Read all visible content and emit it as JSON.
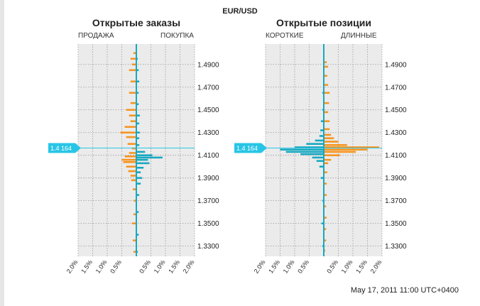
{
  "header": {
    "pair": "EUR/USD",
    "timestamp": "May 17, 2011 11:00 UTC+0400"
  },
  "colors": {
    "sell": "#f7941d",
    "buy": "#16a8c0",
    "price_marker": "#29c5e6",
    "plot_bg": "#ebebeb",
    "grid": "#9a9a9a"
  },
  "current_price": "1.4164",
  "chart_data": [
    {
      "type": "bar",
      "title": "Открытые заказы",
      "left_label": "ПРОДАЖА",
      "right_label": "ПОКУПКА",
      "orientation": "horizontal-mirrored",
      "price_range": [
        1.321,
        1.508
      ],
      "price_ticks": [
        "1.3300",
        "1.3500",
        "1.3700",
        "1.3900",
        "1.4100",
        "1.4300",
        "1.4500",
        "1.4700",
        "1.4900"
      ],
      "percent_range": [
        -2.0,
        2.0
      ],
      "percent_ticks": [
        "2.0%",
        "1.5%",
        "1.0%",
        "0.5%",
        "0.5%",
        "1.0%",
        "1.5%",
        "2.0%"
      ],
      "grid": true,
      "current_price": 1.4164,
      "bucket_size": 0.001,
      "series": [
        {
          "name": "ПРОДАЖА",
          "points": [
            [
              1.325,
              0.1
            ],
            [
              1.335,
              0.12
            ],
            [
              1.35,
              0.15
            ],
            [
              1.358,
              0.1
            ],
            [
              1.37,
              0.08
            ],
            [
              1.38,
              0.12
            ],
            [
              1.388,
              0.18
            ],
            [
              1.392,
              0.2
            ],
            [
              1.396,
              0.28
            ],
            [
              1.4,
              0.35
            ],
            [
              1.404,
              0.45
            ],
            [
              1.406,
              0.5
            ],
            [
              1.409,
              0.4
            ],
            [
              1.412,
              0.25
            ],
            [
              1.416,
              0.15
            ],
            [
              1.42,
              0.3
            ],
            [
              1.426,
              0.35
            ],
            [
              1.43,
              0.55
            ],
            [
              1.435,
              0.4
            ],
            [
              1.44,
              0.2
            ],
            [
              1.445,
              0.25
            ],
            [
              1.45,
              0.35
            ],
            [
              1.456,
              0.2
            ],
            [
              1.465,
              0.25
            ],
            [
              1.475,
              0.2
            ],
            [
              1.485,
              0.25
            ],
            [
              1.49,
              0.15
            ],
            [
              1.495,
              0.2
            ],
            [
              1.5,
              0.1
            ]
          ]
        },
        {
          "name": "ПОКУПКА",
          "points": [
            [
              1.325,
              0.05
            ],
            [
              1.34,
              0.08
            ],
            [
              1.36,
              0.08
            ],
            [
              1.375,
              0.1
            ],
            [
              1.385,
              0.15
            ],
            [
              1.39,
              0.2
            ],
            [
              1.395,
              0.15
            ],
            [
              1.399,
              0.25
            ],
            [
              1.403,
              0.45
            ],
            [
              1.406,
              0.4
            ],
            [
              1.408,
              0.9
            ],
            [
              1.41,
              0.55
            ],
            [
              1.413,
              0.3
            ],
            [
              1.419,
              0.1
            ],
            [
              1.425,
              0.1
            ],
            [
              1.43,
              0.12
            ],
            [
              1.438,
              0.1
            ],
            [
              1.445,
              0.12
            ],
            [
              1.455,
              0.08
            ],
            [
              1.465,
              0.08
            ],
            [
              1.475,
              0.1
            ],
            [
              1.485,
              0.08
            ],
            [
              1.495,
              0.05
            ]
          ]
        }
      ]
    },
    {
      "type": "bar",
      "title": "Открытые позиции",
      "left_label": "КОРОТКИЕ",
      "right_label": "ДЛИННЫЕ",
      "orientation": "horizontal-mirrored",
      "price_range": [
        1.321,
        1.508
      ],
      "price_ticks": [
        "1.3300",
        "1.3500",
        "1.3700",
        "1.3900",
        "1.4100",
        "1.4300",
        "1.4500",
        "1.4700",
        "1.4900"
      ],
      "percent_range": [
        -2.0,
        2.0
      ],
      "percent_ticks": [
        "2.0%",
        "1.5%",
        "1.0%",
        "0.5%",
        "0.5%",
        "1.0%",
        "1.5%",
        "2.0%"
      ],
      "grid": true,
      "current_price": 1.4164,
      "bucket_size": 0.001,
      "series": [
        {
          "name": "КОРОТКИЕ",
          "points": [
            [
              1.33,
              0.05
            ],
            [
              1.35,
              0.08
            ],
            [
              1.37,
              0.05
            ],
            [
              1.39,
              0.1
            ],
            [
              1.4,
              0.15
            ],
            [
              1.405,
              0.25
            ],
            [
              1.408,
              0.4
            ],
            [
              1.411,
              0.8
            ],
            [
              1.413,
              1.3
            ],
            [
              1.415,
              1.5
            ],
            [
              1.417,
              1.0
            ],
            [
              1.42,
              0.6
            ],
            [
              1.423,
              0.3
            ],
            [
              1.427,
              0.15
            ],
            [
              1.432,
              0.12
            ],
            [
              1.44,
              0.1
            ],
            [
              1.45,
              0.05
            ],
            [
              1.465,
              0.05
            ]
          ]
        },
        {
          "name": "ДЛИННЫЕ",
          "points": [
            [
              1.326,
              0.05
            ],
            [
              1.335,
              0.08
            ],
            [
              1.345,
              0.08
            ],
            [
              1.355,
              0.1
            ],
            [
              1.365,
              0.08
            ],
            [
              1.375,
              0.1
            ],
            [
              1.385,
              0.1
            ],
            [
              1.395,
              0.12
            ],
            [
              1.403,
              0.15
            ],
            [
              1.406,
              0.25
            ],
            [
              1.41,
              0.55
            ],
            [
              1.413,
              1.1
            ],
            [
              1.415,
              1.5
            ],
            [
              1.417,
              1.9
            ],
            [
              1.419,
              0.8
            ],
            [
              1.422,
              0.5
            ],
            [
              1.425,
              0.35
            ],
            [
              1.428,
              0.25
            ],
            [
              1.433,
              0.2
            ],
            [
              1.44,
              0.2
            ],
            [
              1.448,
              0.15
            ],
            [
              1.456,
              0.18
            ],
            [
              1.465,
              0.2
            ],
            [
              1.472,
              0.15
            ],
            [
              1.48,
              0.12
            ],
            [
              1.488,
              0.15
            ],
            [
              1.492,
              0.1
            ]
          ]
        }
      ]
    }
  ]
}
